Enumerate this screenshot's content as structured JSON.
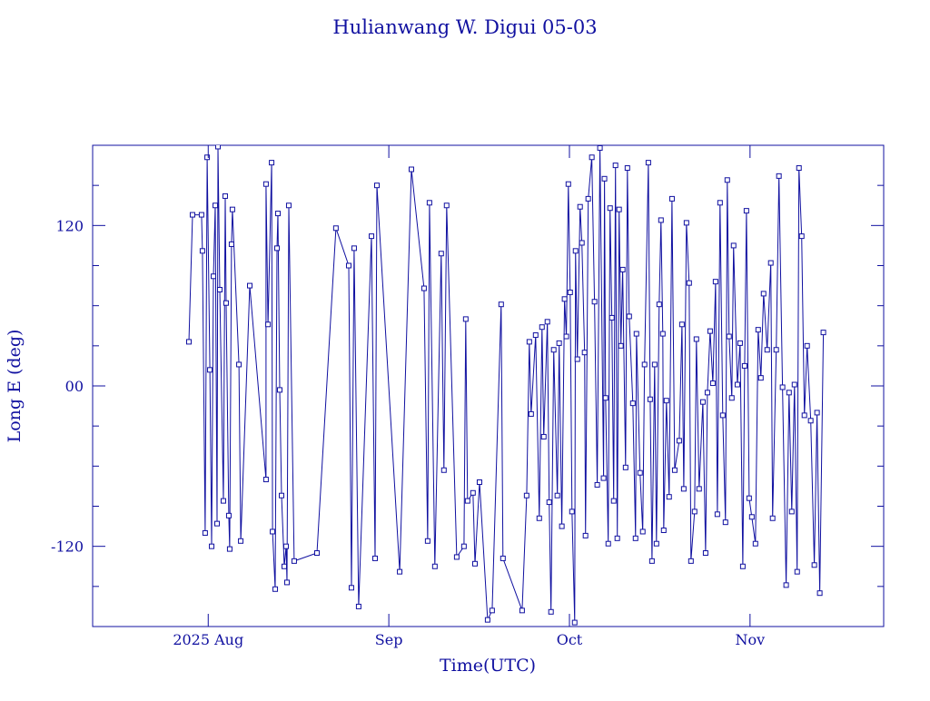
{
  "chart_data": {
    "type": "line",
    "title": "Hulianwang W. Digui 05-03",
    "x_label": "Time(UTC)",
    "y_label": "Long E (deg)",
    "xlim": [
      7.36,
      11.74
    ],
    "xticks": [
      {
        "value": 8,
        "label": "2025 Aug"
      },
      {
        "value": 9,
        "label": "Sep"
      },
      {
        "value": 10,
        "label": "Oct"
      },
      {
        "value": 11,
        "label": "Nov"
      }
    ],
    "ylim": [
      -180,
      180
    ],
    "yticks": [
      {
        "value": -120,
        "label": "-120"
      },
      {
        "value": 0,
        "label": "00"
      },
      {
        "value": 120,
        "label": "120"
      }
    ],
    "yminorticks": [
      -150,
      -90,
      -60,
      -30,
      30,
      60,
      90,
      150
    ],
    "color": "#1010a0",
    "marker": "square",
    "x": [
      7.893,
      7.913,
      7.963,
      7.968,
      7.983,
      7.994,
      8.009,
      8.019,
      8.029,
      8.039,
      8.049,
      8.054,
      8.064,
      8.084,
      8.094,
      8.099,
      8.114,
      8.119,
      8.129,
      8.134,
      8.17,
      8.18,
      8.23,
      8.32,
      8.32,
      8.331,
      8.351,
      8.356,
      8.371,
      8.381,
      8.386,
      8.396,
      8.406,
      8.421,
      8.431,
      8.436,
      8.446,
      8.476,
      8.602,
      8.707,
      8.778,
      8.793,
      8.808,
      8.833,
      8.904,
      8.924,
      8.934,
      9.06,
      9.125,
      9.195,
      9.215,
      9.225,
      9.255,
      9.29,
      9.305,
      9.32,
      9.376,
      9.416,
      9.426,
      9.436,
      9.466,
      9.477,
      9.502,
      9.547,
      9.572,
      9.622,
      9.632,
      9.738,
      9.763,
      9.778,
      9.788,
      9.813,
      9.833,
      9.848,
      9.858,
      9.878,
      9.888,
      9.898,
      9.913,
      9.933,
      9.943,
      9.958,
      9.973,
      9.983,
      9.994,
      10.004,
      10.014,
      10.029,
      10.034,
      10.044,
      10.059,
      10.069,
      10.084,
      10.089,
      10.104,
      10.124,
      10.139,
      10.154,
      10.169,
      10.189,
      10.194,
      10.2,
      10.215,
      10.225,
      10.235,
      10.245,
      10.255,
      10.265,
      10.275,
      10.285,
      10.295,
      10.311,
      10.321,
      10.331,
      10.351,
      10.366,
      10.371,
      10.391,
      10.406,
      10.416,
      10.437,
      10.447,
      10.457,
      10.472,
      10.482,
      10.497,
      10.507,
      10.517,
      10.522,
      10.537,
      10.552,
      10.568,
      10.583,
      10.608,
      10.623,
      10.633,
      10.648,
      10.663,
      10.673,
      10.693,
      10.703,
      10.718,
      10.739,
      10.754,
      10.764,
      10.779,
      10.794,
      10.809,
      10.819,
      10.834,
      10.849,
      10.864,
      10.874,
      10.884,
      10.899,
      10.909,
      10.93,
      10.945,
      10.96,
      10.97,
      10.98,
      10.995,
      11.01,
      11.03,
      11.045,
      11.06,
      11.075,
      11.095,
      11.115,
      11.125,
      11.145,
      11.16,
      11.18,
      11.2,
      11.216,
      11.231,
      11.246,
      11.261,
      11.271,
      11.286,
      11.301,
      11.316,
      11.336,
      11.356,
      11.371,
      11.386,
      11.406
    ],
    "values": [
      33,
      128,
      128,
      101,
      -110,
      171,
      12,
      -120,
      82,
      135,
      -103,
      179,
      72,
      -86,
      142,
      62,
      -97,
      -122,
      106,
      132,
      16,
      -116,
      75,
      -70,
      151,
      46,
      167,
      -109,
      -152,
      103,
      129,
      -3,
      -82,
      -135,
      -120,
      -147,
      135,
      -131,
      -125,
      118,
      90,
      -151,
      103,
      -165,
      112,
      -129,
      150,
      -139,
      162,
      73,
      -116,
      137,
      -135,
      99,
      -63,
      135,
      -128,
      -120,
      50,
      -86,
      -80,
      -133,
      -72,
      -175,
      -168,
      61,
      -129,
      -168,
      -82,
      33,
      -21,
      38,
      -99,
      44,
      -38,
      48,
      -87,
      -169,
      27,
      -82,
      32,
      -105,
      65,
      37,
      151,
      70,
      -94,
      -177,
      101,
      20,
      134,
      107,
      25,
      -112,
      140,
      171,
      63,
      -74,
      178,
      -69,
      155,
      -9,
      -118,
      133,
      51,
      -86,
      165,
      -114,
      132,
      30,
      87,
      -61,
      163,
      52,
      -13,
      -114,
      39,
      -65,
      -109,
      16,
      167,
      -10,
      -131,
      16,
      -118,
      61,
      124,
      39,
      -108,
      -11,
      -83,
      140,
      -63,
      -41,
      46,
      -77,
      122,
      77,
      -131,
      -94,
      35,
      -77,
      -12,
      -125,
      -5,
      41,
      2,
      78,
      -96,
      137,
      -22,
      -102,
      154,
      37,
      -9,
      105,
      1,
      32,
      -135,
      15,
      131,
      -84,
      -98,
      -118,
      42,
      6,
      69,
      27,
      92,
      -99,
      27,
      157,
      -1,
      -149,
      -5,
      -94,
      1,
      -139,
      163,
      112,
      -22,
      30,
      -26,
      -134,
      -20,
      -155,
      40
    ]
  }
}
